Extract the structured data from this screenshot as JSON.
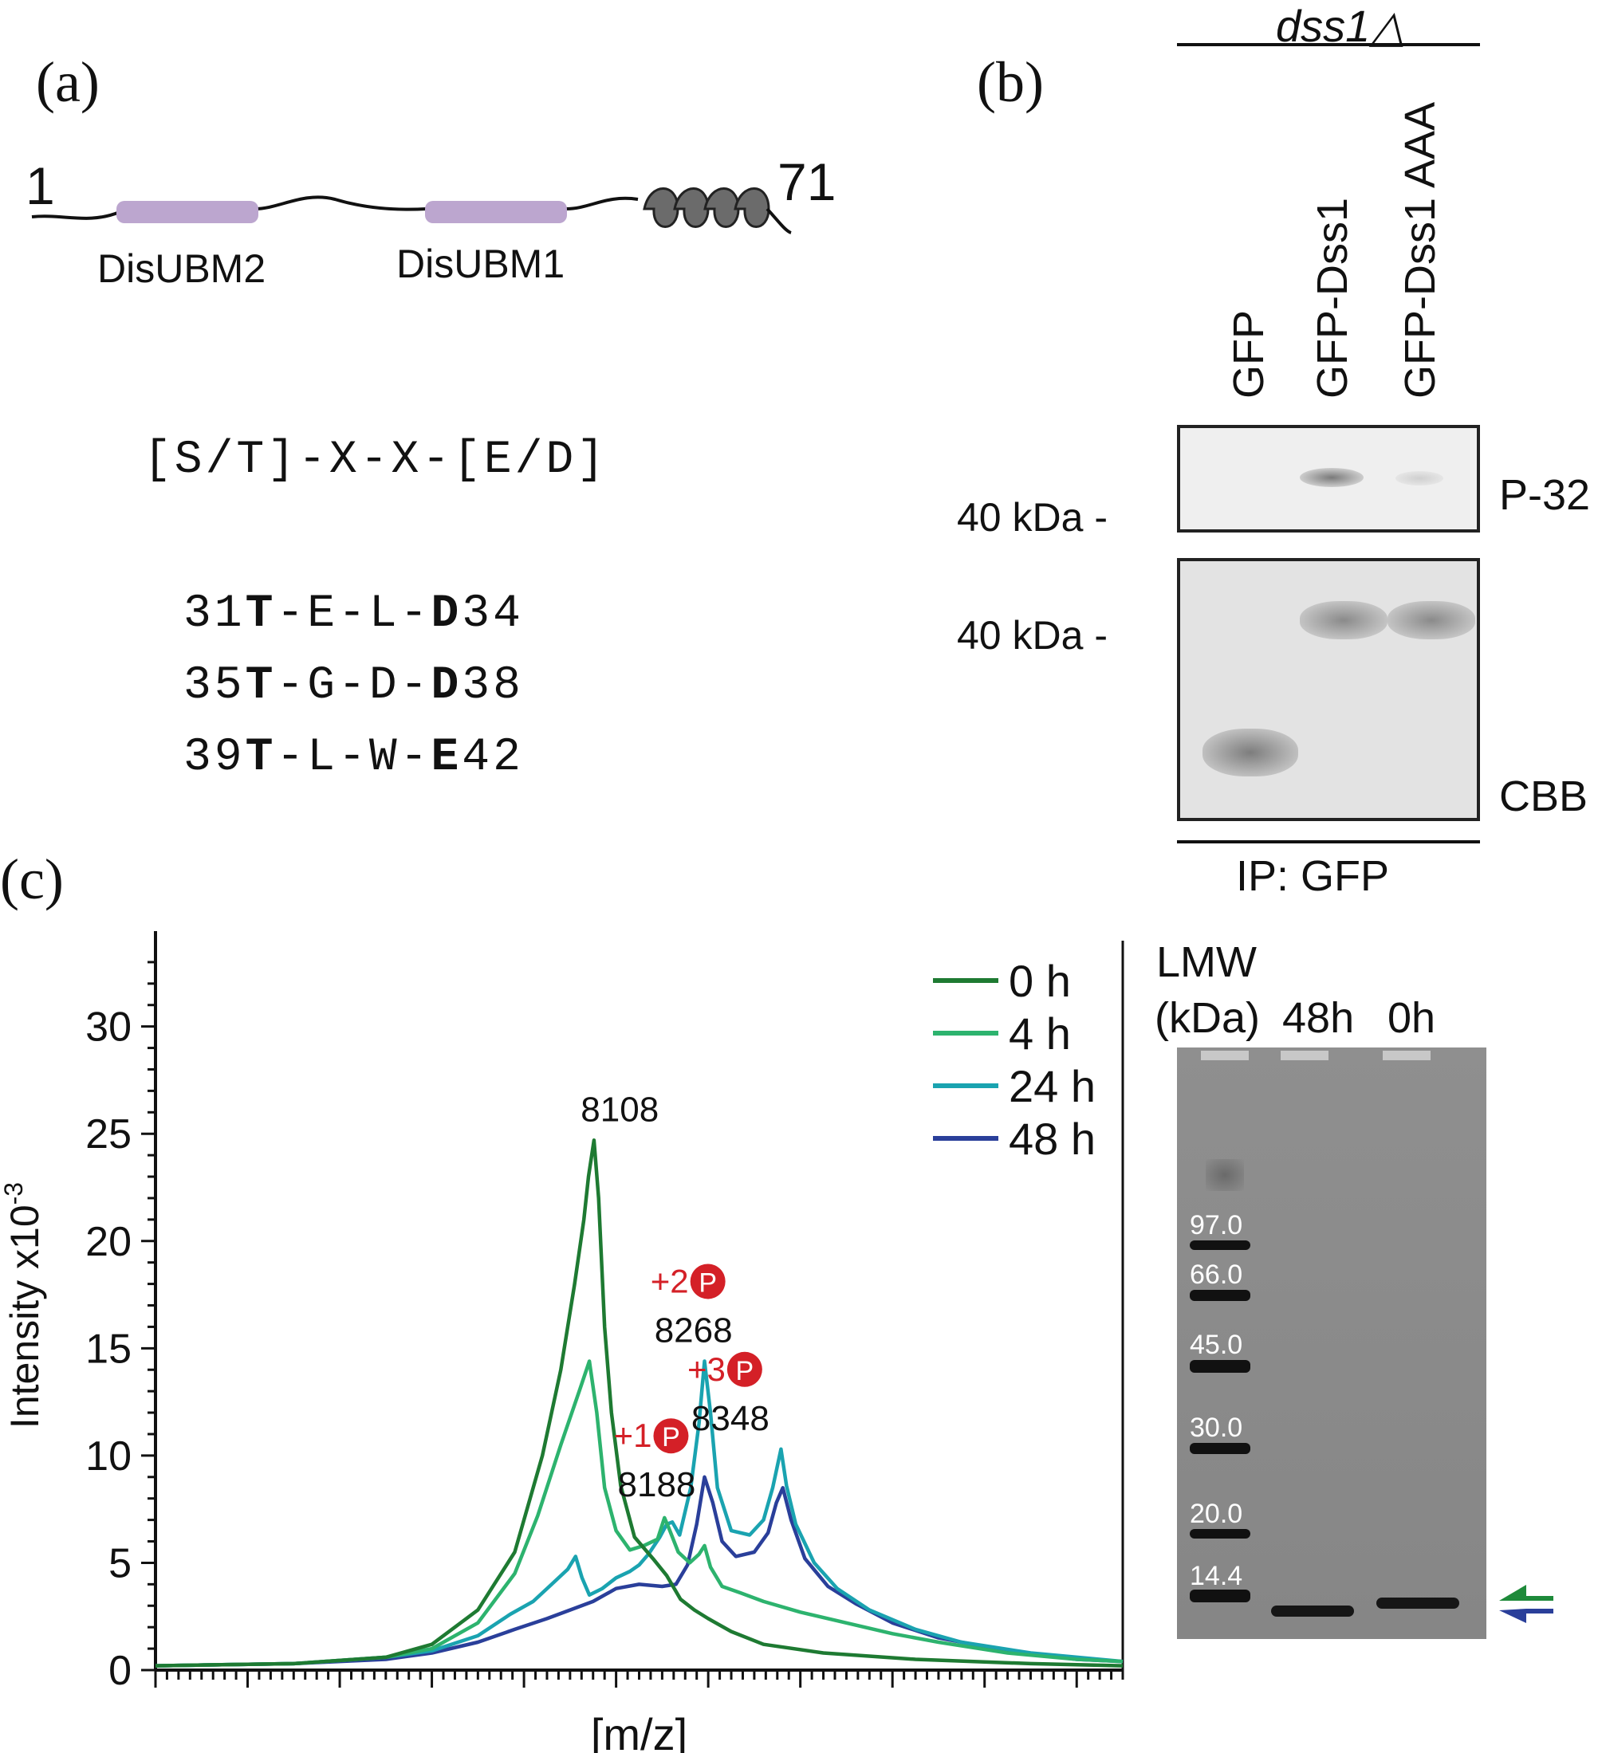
{
  "panel_a": {
    "letter": "(a)",
    "start_residue": "1",
    "end_residue": "71",
    "domain_labels": [
      "DisUBM2",
      "DisUBM1"
    ],
    "domain_color": "#bca6cf",
    "motif": "[S/T]-X-X-[E/D]",
    "sequences": [
      {
        "start": "31",
        "t": "T",
        "mid": "-E-L-",
        "acid": "D",
        "end": "34"
      },
      {
        "start": "35",
        "t": "T",
        "mid": "-G-D-",
        "acid": "D",
        "end": "38"
      },
      {
        "start": "39",
        "t": "T",
        "mid": "-L-W-",
        "acid": "E",
        "end": "42"
      }
    ]
  },
  "panel_b": {
    "letter": "(b)",
    "strain": "dss1△",
    "lanes": [
      "GFP",
      "GFP-Dss1",
      "GFP-Dss1 AAA"
    ],
    "marker_top": "40 kDa -",
    "marker_bottom": "40 kDa -",
    "label_top": "P-32",
    "label_bottom": "CBB",
    "footer": "IP: GFP"
  },
  "panel_c": {
    "letter": "(c)",
    "gel": {
      "header_line1": "LMW",
      "header_line2": "(kDa)",
      "lanes": [
        "48h",
        "0h"
      ],
      "ladder": [
        "97.0",
        "66.0",
        "45.0",
        "30.0",
        "20.0",
        "14.4"
      ]
    }
  },
  "chart_data": {
    "type": "line",
    "xlabel": "[m/z]",
    "ylabel": "Intensity x10",
    "ylabel_exp": "-3",
    "ylim": [
      0,
      34
    ],
    "xlim": [
      7100,
      9200
    ],
    "yticks": [
      "0",
      "5",
      "10",
      "15",
      "20",
      "25",
      "30"
    ],
    "legend_position": "top-right",
    "colors": {
      "0 h": "#1e7a32",
      "4 h": "#2db36e",
      "24 h": "#1aa3b0",
      "48 h": "#2a3f9a",
      "annotation": "#d42027"
    },
    "annotations": [
      {
        "mass": "8108",
        "x": 8108,
        "y": 24.7
      },
      {
        "mass": "8188",
        "prefix": "+1",
        "symbol": "P",
        "x": 8188,
        "y": 7.2
      },
      {
        "mass": "8268",
        "prefix": "+2",
        "symbol": "P",
        "x": 8268,
        "y": 14.4
      },
      {
        "mass": "8348",
        "prefix": "+3",
        "symbol": "P",
        "x": 8348,
        "y": 10.3
      }
    ],
    "series": [
      {
        "name": "0 h",
        "points": [
          [
            7100,
            0.2
          ],
          [
            7400,
            0.3
          ],
          [
            7600,
            0.6
          ],
          [
            7700,
            1.2
          ],
          [
            7800,
            2.8
          ],
          [
            7880,
            5.5
          ],
          [
            7940,
            10
          ],
          [
            7980,
            14
          ],
          [
            8010,
            18
          ],
          [
            8030,
            21
          ],
          [
            8040,
            23
          ],
          [
            8052,
            24.7
          ],
          [
            8062,
            22
          ],
          [
            8075,
            16
          ],
          [
            8090,
            12
          ],
          [
            8110,
            8.6
          ],
          [
            8140,
            6.2
          ],
          [
            8180,
            5.2
          ],
          [
            8210,
            4.4
          ],
          [
            8240,
            3.3
          ],
          [
            8270,
            2.8
          ],
          [
            8300,
            2.4
          ],
          [
            8350,
            1.8
          ],
          [
            8420,
            1.2
          ],
          [
            8550,
            0.8
          ],
          [
            8750,
            0.5
          ],
          [
            9000,
            0.3
          ],
          [
            9200,
            0.2
          ]
        ]
      },
      {
        "name": "4 h",
        "points": [
          [
            7100,
            0.2
          ],
          [
            7400,
            0.3
          ],
          [
            7600,
            0.6
          ],
          [
            7700,
            1.0
          ],
          [
            7800,
            2.2
          ],
          [
            7880,
            4.5
          ],
          [
            7930,
            7.2
          ],
          [
            7980,
            10.5
          ],
          [
            8020,
            13
          ],
          [
            8042,
            14.4
          ],
          [
            8058,
            12
          ],
          [
            8075,
            8.5
          ],
          [
            8100,
            6.5
          ],
          [
            8130,
            5.6
          ],
          [
            8160,
            5.8
          ],
          [
            8190,
            6.1
          ],
          [
            8205,
            7.1
          ],
          [
            8215,
            6.6
          ],
          [
            8235,
            5.5
          ],
          [
            8260,
            5.0
          ],
          [
            8280,
            5.4
          ],
          [
            8292,
            5.8
          ],
          [
            8305,
            4.8
          ],
          [
            8330,
            3.9
          ],
          [
            8370,
            3.6
          ],
          [
            8420,
            3.2
          ],
          [
            8500,
            2.7
          ],
          [
            8600,
            2.2
          ],
          [
            8700,
            1.7
          ],
          [
            8800,
            1.3
          ],
          [
            8950,
            0.8
          ],
          [
            9100,
            0.5
          ],
          [
            9200,
            0.4
          ]
        ]
      },
      {
        "name": "24 h",
        "points": [
          [
            7100,
            0.2
          ],
          [
            7400,
            0.3
          ],
          [
            7600,
            0.6
          ],
          [
            7700,
            0.9
          ],
          [
            7800,
            1.6
          ],
          [
            7870,
            2.6
          ],
          [
            7920,
            3.2
          ],
          [
            7960,
            4.0
          ],
          [
            7995,
            4.7
          ],
          [
            8012,
            5.3
          ],
          [
            8026,
            4.3
          ],
          [
            8042,
            3.5
          ],
          [
            8070,
            3.8
          ],
          [
            8100,
            4.3
          ],
          [
            8130,
            4.6
          ],
          [
            8150,
            4.9
          ],
          [
            8170,
            5.4
          ],
          [
            8195,
            6.2
          ],
          [
            8210,
            6.8
          ],
          [
            8222,
            6.9
          ],
          [
            8238,
            6.3
          ],
          [
            8262,
            8.5
          ],
          [
            8280,
            11.5
          ],
          [
            8292,
            14.4
          ],
          [
            8305,
            12
          ],
          [
            8320,
            8.5
          ],
          [
            8350,
            6.5
          ],
          [
            8390,
            6.3
          ],
          [
            8420,
            7.0
          ],
          [
            8440,
            8.5
          ],
          [
            8458,
            10.3
          ],
          [
            8470,
            8.6
          ],
          [
            8490,
            6.8
          ],
          [
            8530,
            5.0
          ],
          [
            8580,
            3.8
          ],
          [
            8650,
            2.8
          ],
          [
            8750,
            1.9
          ],
          [
            8850,
            1.3
          ],
          [
            9000,
            0.8
          ],
          [
            9200,
            0.4
          ]
        ]
      },
      {
        "name": "48 h",
        "points": [
          [
            7100,
            0.2
          ],
          [
            7400,
            0.3
          ],
          [
            7600,
            0.5
          ],
          [
            7700,
            0.8
          ],
          [
            7800,
            1.3
          ],
          [
            7880,
            1.9
          ],
          [
            7950,
            2.4
          ],
          [
            8000,
            2.8
          ],
          [
            8050,
            3.2
          ],
          [
            8100,
            3.8
          ],
          [
            8150,
            4.0
          ],
          [
            8200,
            3.9
          ],
          [
            8230,
            4.0
          ],
          [
            8255,
            4.9
          ],
          [
            8275,
            6.8
          ],
          [
            8292,
            9.0
          ],
          [
            8310,
            7.8
          ],
          [
            8330,
            6.0
          ],
          [
            8360,
            5.3
          ],
          [
            8400,
            5.5
          ],
          [
            8430,
            6.4
          ],
          [
            8448,
            7.8
          ],
          [
            8462,
            8.5
          ],
          [
            8480,
            7.0
          ],
          [
            8510,
            5.2
          ],
          [
            8560,
            3.9
          ],
          [
            8620,
            3.1
          ],
          [
            8700,
            2.2
          ],
          [
            8800,
            1.5
          ],
          [
            8950,
            0.9
          ],
          [
            9100,
            0.5
          ],
          [
            9200,
            0.4
          ]
        ]
      }
    ]
  }
}
